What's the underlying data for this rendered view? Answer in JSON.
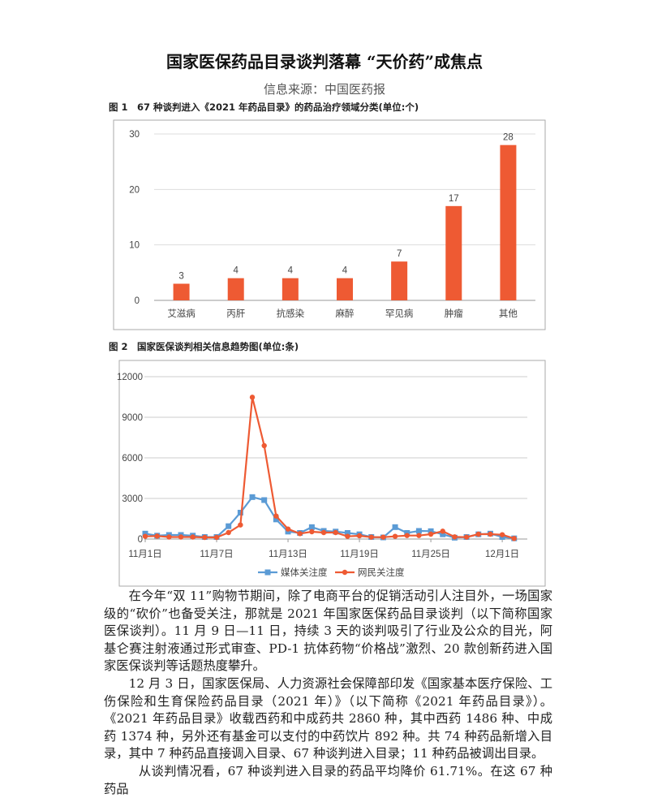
{
  "title": "国家医保药品目录谈判落幕 “天价药”成焦点",
  "source": "信息来源：中国医药报",
  "figure1": {
    "caption": "图 1　67 种谈判进入《2021 年药品目录》的药品治疗领域分类(单位:个)",
    "chart_data": {
      "type": "bar",
      "categories": [
        "艾滋病",
        "丙肝",
        "抗感染",
        "麻醉",
        "罕见病",
        "肿瘤",
        "其他"
      ],
      "values": [
        3,
        4,
        4,
        4,
        7,
        17,
        28
      ],
      "ylim": [
        0,
        30
      ],
      "yticks": [
        0,
        10,
        20,
        30
      ],
      "grid": true,
      "color": "#EE5A33"
    }
  },
  "figure2": {
    "caption": "图 2　国家医保谈判相关信息趋势图(单位:条)",
    "chart_data": {
      "type": "line",
      "x": [
        "11月1日",
        "11月2日",
        "11月3日",
        "11月4日",
        "11月5日",
        "11月6日",
        "11月7日",
        "11月8日",
        "11月9日",
        "11月10日",
        "11月11日",
        "11月12日",
        "11月13日",
        "11月14日",
        "11月15日",
        "11月16日",
        "11月17日",
        "11月18日",
        "11月19日",
        "11月20日",
        "11月21日",
        "11月22日",
        "11月23日",
        "11月24日",
        "11月25日",
        "11月26日",
        "11月27日",
        "11月28日",
        "11月29日",
        "11月30日",
        "12月1日",
        "12月2日"
      ],
      "xtick_labels": [
        "11月1日",
        "11月7日",
        "11月13日",
        "11月19日",
        "11月25日",
        "12月1日"
      ],
      "ylim": [
        0,
        12000
      ],
      "yticks": [
        0,
        3000,
        6000,
        9000,
        12000
      ],
      "grid": true,
      "legend": "bottom",
      "series": [
        {
          "name": "媒体关注度",
          "color": "#5B9BD5",
          "marker": "square",
          "values": [
            400,
            250,
            300,
            300,
            250,
            150,
            150,
            950,
            1950,
            3100,
            2880,
            1450,
            550,
            450,
            880,
            600,
            550,
            450,
            350,
            150,
            120,
            880,
            450,
            600,
            580,
            350,
            100,
            150,
            350,
            400,
            150,
            50
          ]
        },
        {
          "name": "网民关注度",
          "color": "#EE5A33",
          "marker": "circle",
          "values": [
            200,
            220,
            150,
            150,
            150,
            120,
            120,
            480,
            1040,
            10480,
            6900,
            1700,
            740,
            400,
            540,
            480,
            480,
            200,
            240,
            140,
            140,
            200,
            260,
            260,
            360,
            580,
            160,
            140,
            360,
            360,
            320,
            40
          ]
        }
      ]
    }
  },
  "paragraphs": [
    "在今年“双 11”购物节期间，除了电商平台的促销活动引人注目外，一场国家级的“砍价”也备受关注，那就是 2021 年国家医保药品目录谈判（以下简称国家医保谈判）。11 月 9 日—11 日，持续 3 天的谈判吸引了行业及公众的目光，阿基仑赛注射液通过形式审查、PD-1 抗体药物“价格战”激烈、20 款创新药进入国家医保谈判等话题热度攀升。",
    "12 月 3 日，国家医保局、人力资源社会保障部印发《国家基本医疗保险、工伤保险和生育保险药品目录（2021 年）》（以下简称《2021 年药品目录》）。《2021 年药品目录》收载西药和中成药共 2860 种，其中西药 1486 种、中成药 1374 种，另外还有基金可以支付的中药饮片 892 种。共 74 种药品新增入目录，其中 7 种药品直接调入目录、67 种谈判进入目录；11 种药品被调出目录。",
    "从谈判情况看，67 种谈判进入目录的药品平均降价 61.71%。在这 67 种药品"
  ]
}
